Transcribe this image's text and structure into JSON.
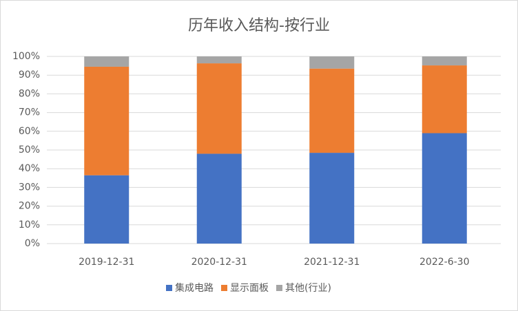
{
  "chart_data": {
    "type": "stacked_bar",
    "title": "历年收入结构-按行业",
    "categories": [
      "2019-12-31",
      "2020-12-31",
      "2021-12-31",
      "2022-6-30"
    ],
    "series": [
      {
        "name": "集成电路",
        "color": "#4472c4",
        "values": [
          36.5,
          48,
          48.5,
          59
        ]
      },
      {
        "name": "显示面板",
        "color": "#ed7d31",
        "values": [
          58,
          48.3,
          45,
          36.2
        ]
      },
      {
        "name": "其他(行业)",
        "color": "#a5a5a5",
        "values": [
          5.5,
          3.7,
          6.5,
          4.8
        ]
      }
    ],
    "ylim": [
      0,
      100
    ],
    "yticks": [
      {
        "value": 0,
        "label": "0%"
      },
      {
        "value": 10,
        "label": "10%"
      },
      {
        "value": 20,
        "label": "20%"
      },
      {
        "value": 30,
        "label": "30%"
      },
      {
        "value": 40,
        "label": "40%"
      },
      {
        "value": 50,
        "label": "50%"
      },
      {
        "value": 60,
        "label": "60%"
      },
      {
        "value": 70,
        "label": "70%"
      },
      {
        "value": 80,
        "label": "80%"
      },
      {
        "value": 90,
        "label": "90%"
      },
      {
        "value": 100,
        "label": "100%"
      }
    ],
    "grid": true,
    "legend": "bottom"
  }
}
